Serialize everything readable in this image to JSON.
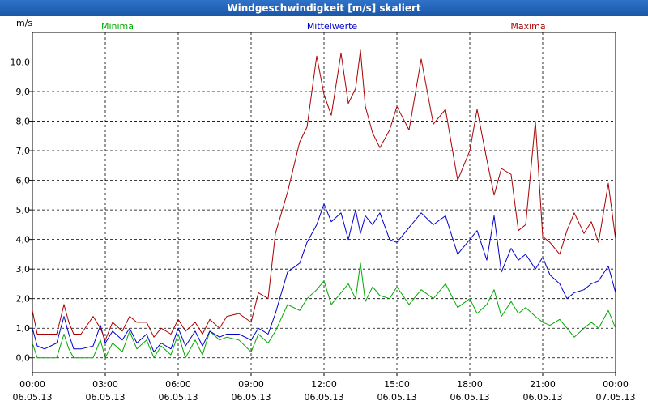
{
  "window_title": "Windgeschwindigkeit [m/s] skaliert",
  "colors": {
    "minima": "#00aa00",
    "mittelwerte": "#0000cc",
    "maxima": "#aa0000",
    "titlebar": "#1f5fb4"
  },
  "chart_data": {
    "type": "line",
    "ylabel": "m/s",
    "ylim": [
      -0.5,
      11
    ],
    "yticks": [
      "0,0",
      "1,0",
      "2,0",
      "3,0",
      "4,0",
      "5,0",
      "6,0",
      "7,0",
      "8,0",
      "9,0",
      "10,0"
    ],
    "xticks": [
      {
        "time": "00:00",
        "date": "06.05.13"
      },
      {
        "time": "03:00",
        "date": "06.05.13"
      },
      {
        "time": "06:00",
        "date": "06.05.13"
      },
      {
        "time": "09:00",
        "date": "06.05.13"
      },
      {
        "time": "12:00",
        "date": "06.05.13"
      },
      {
        "time": "15:00",
        "date": "06.05.13"
      },
      {
        "time": "18:00",
        "date": "06.05.13"
      },
      {
        "time": "21:00",
        "date": "06.05.13"
      },
      {
        "time": "00:00",
        "date": "07.05.13"
      }
    ],
    "xlim_hours": [
      0,
      24
    ],
    "grid": true,
    "series": [
      {
        "name": "Minima",
        "color": "#00aa00",
        "x": [
          0,
          0.2,
          0.5,
          1,
          1.3,
          1.5,
          1.7,
          2,
          2.5,
          2.8,
          3,
          3.3,
          3.7,
          4,
          4.3,
          4.7,
          5,
          5.3,
          5.7,
          6,
          6.3,
          6.7,
          7,
          7.3,
          7.7,
          8,
          8.5,
          9,
          9.3,
          9.7,
          10,
          10.5,
          11,
          11.3,
          11.7,
          12,
          12.3,
          12.7,
          13,
          13.3,
          13.5,
          13.7,
          14,
          14.3,
          14.7,
          15,
          15.5,
          16,
          16.5,
          17,
          17.5,
          18,
          18.3,
          18.7,
          19,
          19.3,
          19.7,
          20,
          20.3,
          20.7,
          21,
          21.3,
          21.7,
          22,
          22.3,
          22.7,
          23,
          23.3,
          23.7,
          24
        ],
        "y": [
          0.5,
          0,
          0,
          0,
          0.8,
          0.3,
          0,
          0,
          0,
          0.6,
          0,
          0.5,
          0.2,
          0.9,
          0.3,
          0.6,
          0,
          0.4,
          0.1,
          0.8,
          0,
          0.6,
          0.1,
          0.9,
          0.6,
          0.7,
          0.6,
          0.2,
          0.8,
          0.5,
          0.9,
          1.8,
          1.6,
          2,
          2.3,
          2.6,
          1.8,
          2.2,
          2.5,
          2,
          3.2,
          1.9,
          2.4,
          2.1,
          2,
          2.4,
          1.8,
          2.3,
          2,
          2.5,
          1.7,
          2,
          1.5,
          1.8,
          2.3,
          1.4,
          1.9,
          1.5,
          1.7,
          1.4,
          1.2,
          1.1,
          1.3,
          1,
          0.7,
          1,
          1.2,
          1,
          1.6,
          1
        ]
      },
      {
        "name": "Mittelwerte",
        "color": "#0000cc",
        "x": [
          0,
          0.2,
          0.5,
          1,
          1.3,
          1.5,
          1.7,
          2,
          2.5,
          2.8,
          3,
          3.3,
          3.7,
          4,
          4.3,
          4.7,
          5,
          5.3,
          5.7,
          6,
          6.3,
          6.7,
          7,
          7.3,
          7.7,
          8,
          8.5,
          9,
          9.3,
          9.7,
          10,
          10.5,
          11,
          11.3,
          11.7,
          12,
          12.3,
          12.7,
          13,
          13.3,
          13.5,
          13.7,
          14,
          14.3,
          14.7,
          15,
          15.5,
          16,
          16.5,
          17,
          17.5,
          18,
          18.3,
          18.7,
          19,
          19.3,
          19.7,
          20,
          20.3,
          20.7,
          21,
          21.3,
          21.7,
          22,
          22.3,
          22.7,
          23,
          23.3,
          23.7,
          24
        ],
        "y": [
          1,
          0.4,
          0.3,
          0.5,
          1.4,
          0.8,
          0.3,
          0.3,
          0.4,
          1.1,
          0.5,
          0.9,
          0.6,
          1,
          0.5,
          0.8,
          0.2,
          0.5,
          0.3,
          1,
          0.4,
          0.9,
          0.4,
          0.9,
          0.7,
          0.8,
          0.8,
          0.6,
          1,
          0.8,
          1.5,
          2.9,
          3.2,
          3.9,
          4.5,
          5.2,
          4.6,
          4.9,
          4,
          5,
          4.2,
          4.8,
          4.5,
          4.9,
          4,
          3.9,
          4.4,
          4.9,
          4.5,
          4.8,
          3.5,
          4,
          4.3,
          3.3,
          4.8,
          2.9,
          3.7,
          3.3,
          3.5,
          3,
          3.4,
          2.8,
          2.5,
          2,
          2.2,
          2.3,
          2.5,
          2.6,
          3.1,
          2.2
        ]
      },
      {
        "name": "Maxima",
        "color": "#aa0000",
        "x": [
          0,
          0.2,
          0.5,
          1,
          1.3,
          1.5,
          1.7,
          2,
          2.5,
          2.8,
          3,
          3.3,
          3.7,
          4,
          4.3,
          4.7,
          5,
          5.3,
          5.7,
          6,
          6.3,
          6.7,
          7,
          7.3,
          7.7,
          8,
          8.5,
          9,
          9.3,
          9.7,
          10,
          10.5,
          11,
          11.3,
          11.7,
          12,
          12.3,
          12.7,
          13,
          13.3,
          13.5,
          13.7,
          14,
          14.3,
          14.7,
          15,
          15.5,
          16,
          16.5,
          17,
          17.5,
          18,
          18.3,
          18.7,
          19,
          19.3,
          19.7,
          20,
          20.3,
          20.7,
          21,
          21.3,
          21.7,
          22,
          22.3,
          22.7,
          23,
          23.3,
          23.7,
          24
        ],
        "y": [
          1.6,
          0.8,
          0.8,
          0.8,
          1.8,
          1.2,
          0.8,
          0.8,
          1.4,
          1,
          0.6,
          1.2,
          0.9,
          1.4,
          1.2,
          1.2,
          0.7,
          1,
          0.8,
          1.3,
          0.9,
          1.2,
          0.8,
          1.3,
          1,
          1.4,
          1.5,
          1.2,
          2.2,
          2,
          4.2,
          5.6,
          7.3,
          7.8,
          10.2,
          8.9,
          8.2,
          10.3,
          8.6,
          9.1,
          10.4,
          8.5,
          7.6,
          7.1,
          7.7,
          8.5,
          7.7,
          10.1,
          7.9,
          8.4,
          6,
          7,
          8.4,
          6.7,
          5.5,
          6.4,
          6.2,
          4.3,
          4.5,
          8,
          4.1,
          3.9,
          3.5,
          4.3,
          4.9,
          4.2,
          4.6,
          3.9,
          5.9,
          4
        ]
      }
    ]
  }
}
